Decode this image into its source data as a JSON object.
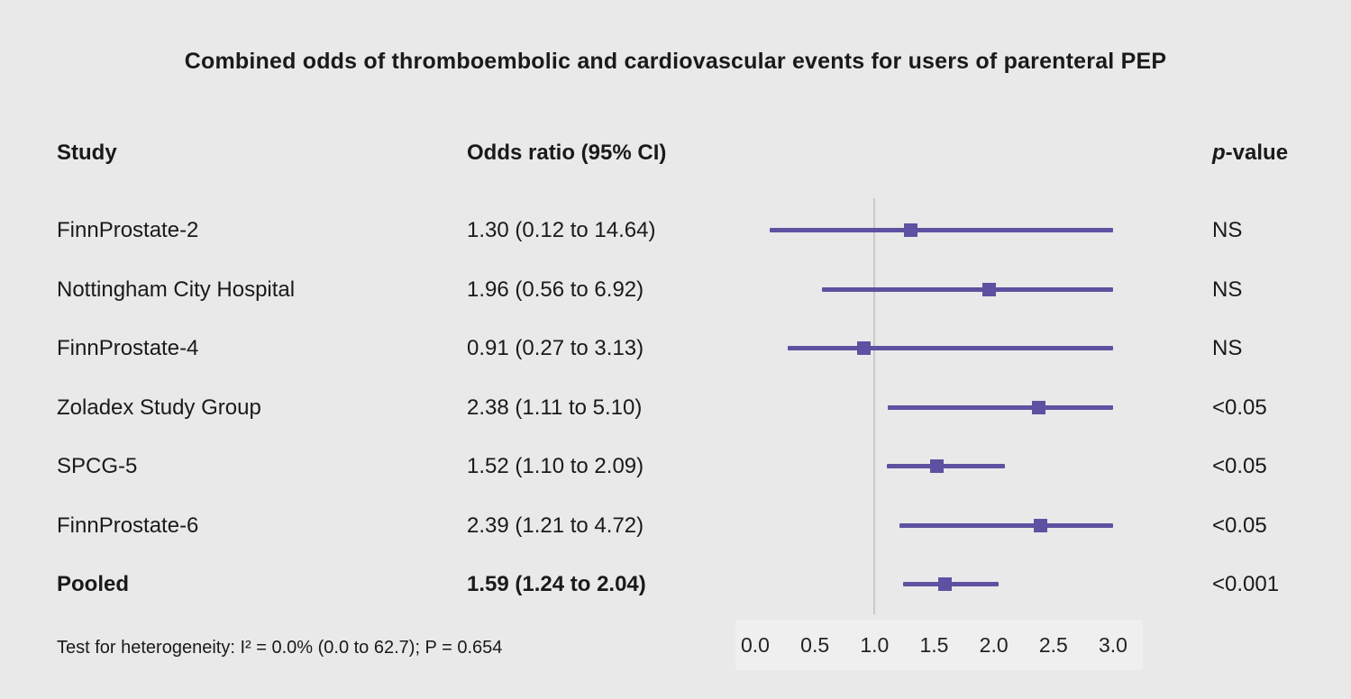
{
  "title": "Combined odds of thromboembolic and cardiovascular events for users of parenteral PEP",
  "header": {
    "study": "Study",
    "odds_ratio": "Odds ratio (95% CI)",
    "p_italic": "p",
    "p_rest": "-value"
  },
  "footer": {
    "heterogeneity": "Test for heterogeneity: I² = 0.0% (0.0 to 62.7); P = 0.654"
  },
  "colors": {
    "accent": "#5e51a1",
    "background": "#e9e9e9",
    "reference_line": "#c9c9c9",
    "text": "#1a1a1a"
  },
  "chart_data": {
    "type": "forest",
    "title": "Combined odds of thromboembolic and cardiovascular events for users of parenteral PEP",
    "xlabel": "",
    "xlim": [
      0.0,
      3.0
    ],
    "x_ticks": [
      "0.0",
      "0.5",
      "1.0",
      "1.5",
      "2.0",
      "2.5",
      "3.0"
    ],
    "reference_line": 1.0,
    "legend": "none",
    "grid": "off",
    "rows": [
      {
        "study": "FinnProstate-2",
        "or_label": "1.30 (0.12 to 14.64)",
        "or": 1.3,
        "ci_low": 0.12,
        "ci_high": 14.64,
        "p_value": "NS",
        "bold": false
      },
      {
        "study": "Nottingham City Hospital",
        "or_label": "1.96 (0.56 to 6.92)",
        "or": 1.96,
        "ci_low": 0.56,
        "ci_high": 6.92,
        "p_value": "NS",
        "bold": false
      },
      {
        "study": "FinnProstate-4",
        "or_label": "0.91 (0.27 to 3.13)",
        "or": 0.91,
        "ci_low": 0.27,
        "ci_high": 3.13,
        "p_value": "NS",
        "bold": false
      },
      {
        "study": "Zoladex Study Group",
        "or_label": "2.38 (1.11 to 5.10)",
        "or": 2.38,
        "ci_low": 1.11,
        "ci_high": 5.1,
        "p_value": "<0.05",
        "bold": false
      },
      {
        "study": "SPCG-5",
        "or_label": "1.52 (1.10 to 2.09)",
        "or": 1.52,
        "ci_low": 1.1,
        "ci_high": 2.09,
        "p_value": "<0.05",
        "bold": false
      },
      {
        "study": "FinnProstate-6",
        "or_label": "2.39 (1.21 to 4.72)",
        "or": 2.39,
        "ci_low": 1.21,
        "ci_high": 4.72,
        "p_value": "<0.05",
        "bold": false
      },
      {
        "study": "Pooled",
        "or_label": "1.59 (1.24 to 2.04)",
        "or": 1.59,
        "ci_low": 1.24,
        "ci_high": 2.04,
        "p_value": "<0.001",
        "bold": true
      }
    ]
  }
}
